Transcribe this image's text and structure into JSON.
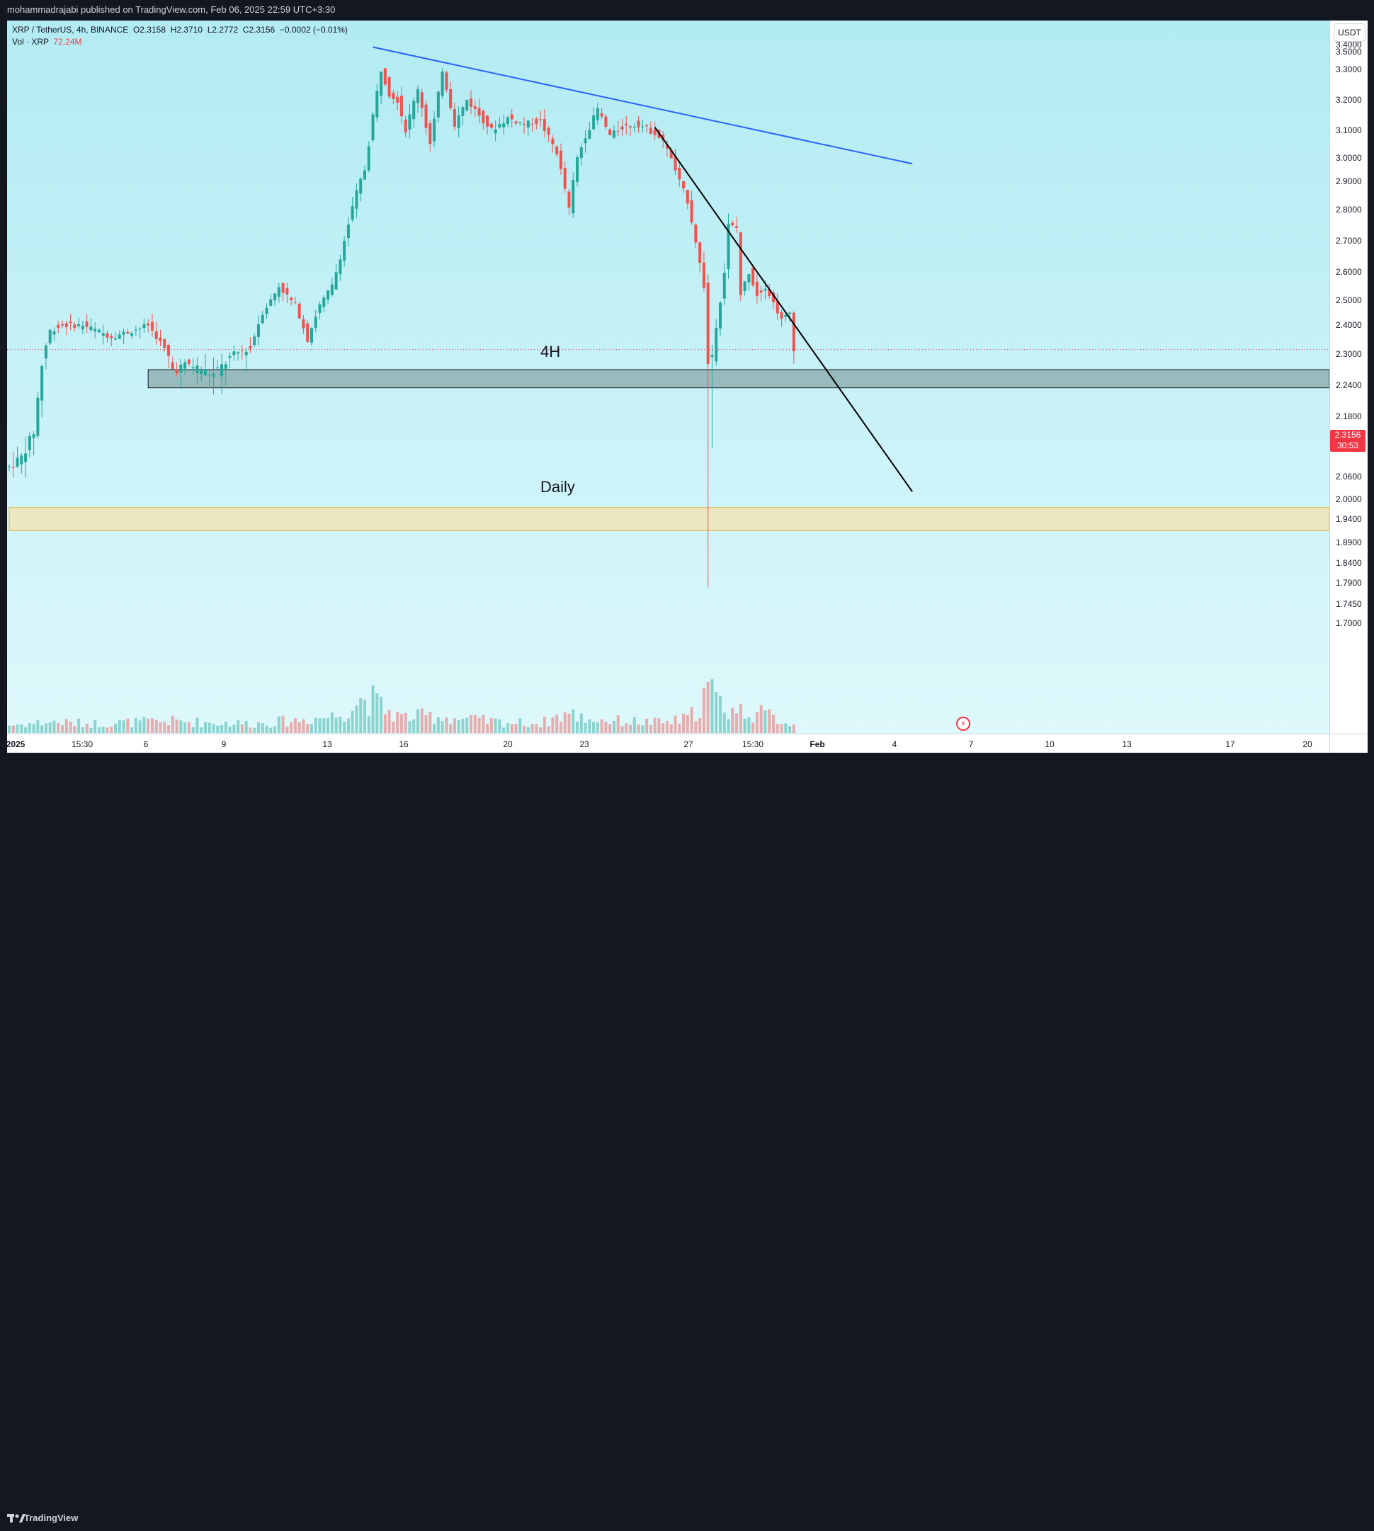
{
  "header": {
    "published_text": "mohammadrajabi published on TradingView.com, Feb 06, 2025 22:59 UTC+3:30"
  },
  "legend": {
    "symbol": "XRP / TetherUS, 4h, BINANCE",
    "open": "O2.3158",
    "high": "H2.3710",
    "low": "L2.2772",
    "close": "C2.3156",
    "change": "−0.0002 (−0.01%)",
    "volume_label": "Vol · XRP",
    "volume_value": "72.24M"
  },
  "price_axis": {
    "unit": "USDT",
    "ticks": [
      "3.5000",
      "3.4000",
      "3.3000",
      "3.2000",
      "3.1000",
      "3.0000",
      "2.9000",
      "2.8000",
      "2.7000",
      "2.6000",
      "2.5000",
      "2.4000",
      "2.3000",
      "2.2400",
      "2.1800",
      "2.1200",
      "2.0600",
      "2.0000",
      "1.9400",
      "1.8900",
      "1.8400",
      "1.7900",
      "1.7450",
      "1.7000"
    ],
    "last_price": "2.3156",
    "countdown": "30:53"
  },
  "time_axis": {
    "ticks": [
      "2025",
      "15:30",
      "6",
      "9",
      "13",
      "16",
      "20",
      "23",
      "27",
      "15:30",
      "Feb",
      "4",
      "7",
      "10",
      "13",
      "17",
      "20"
    ]
  },
  "annotations": {
    "zone_4h_label": "4H",
    "zone_daily_label": "Daily"
  },
  "footer": {
    "brand": "TradingView"
  },
  "colors": {
    "up": "#26a69a",
    "down": "#ef5350",
    "trendline_upper": "#2962ff",
    "trendline_lower": "#000000",
    "zone_4h": "#8fb3b3",
    "zone_daily": "#f2e3b3"
  },
  "chart_data": {
    "type": "candlestick",
    "symbol": "XRP / TetherUS",
    "interval": "4h",
    "exchange": "BINANCE",
    "ylim": [
      1.68,
      3.56
    ],
    "y_ticks": [
      3.5,
      3.4,
      3.3,
      3.2,
      3.1,
      3.0,
      2.9,
      2.8,
      2.7,
      2.6,
      2.5,
      2.4,
      2.3,
      2.24,
      2.18,
      2.12,
      2.06,
      2.0,
      1.94,
      1.89,
      1.84,
      1.79,
      1.745,
      1.7
    ],
    "last_price": 2.3156,
    "price_path": [
      [
        0,
        2.08
      ],
      [
        3,
        2.1
      ],
      [
        6,
        2.15
      ],
      [
        8,
        2.28
      ],
      [
        10,
        2.38
      ],
      [
        13,
        2.4
      ],
      [
        18,
        2.4
      ],
      [
        25,
        2.36
      ],
      [
        30,
        2.38
      ],
      [
        34,
        2.4
      ],
      [
        37,
        2.34
      ],
      [
        40,
        2.27
      ],
      [
        44,
        2.28
      ],
      [
        50,
        2.26
      ],
      [
        55,
        2.3
      ],
      [
        59,
        2.32
      ],
      [
        62,
        2.45
      ],
      [
        66,
        2.55
      ],
      [
        70,
        2.48
      ],
      [
        73,
        2.35
      ],
      [
        76,
        2.48
      ],
      [
        79,
        2.55
      ],
      [
        82,
        2.7
      ],
      [
        85,
        2.86
      ],
      [
        87,
        2.95
      ],
      [
        89,
        3.15
      ],
      [
        91,
        3.3
      ],
      [
        93,
        3.22
      ],
      [
        95,
        3.2
      ],
      [
        97,
        3.1
      ],
      [
        100,
        3.24
      ],
      [
        103,
        3.05
      ],
      [
        106,
        3.3
      ],
      [
        109,
        3.12
      ],
      [
        112,
        3.2
      ],
      [
        115,
        3.15
      ],
      [
        118,
        3.1
      ],
      [
        122,
        3.14
      ],
      [
        126,
        3.12
      ],
      [
        130,
        3.13
      ],
      [
        134,
        3.02
      ],
      [
        137,
        2.8
      ],
      [
        139,
        3.0
      ],
      [
        141,
        3.08
      ],
      [
        144,
        3.17
      ],
      [
        147,
        3.08
      ],
      [
        150,
        3.11
      ],
      [
        154,
        3.12
      ],
      [
        158,
        3.09
      ],
      [
        161,
        3.04
      ],
      [
        164,
        2.9
      ],
      [
        166,
        2.83
      ],
      [
        168,
        2.7
      ],
      [
        170,
        2.55
      ],
      [
        171,
        2.28
      ],
      [
        172,
        2.3
      ],
      [
        173,
        2.4
      ],
      [
        175,
        2.6
      ],
      [
        176,
        2.75
      ],
      [
        178,
        2.74
      ],
      [
        179,
        2.52
      ],
      [
        181,
        2.6
      ],
      [
        183,
        2.52
      ],
      [
        185,
        2.55
      ],
      [
        187,
        2.49
      ],
      [
        189,
        2.42
      ],
      [
        191,
        2.45
      ],
      [
        192,
        2.32
      ]
    ],
    "volume_profile": [
      [
        0,
        0.1
      ],
      [
        10,
        0.14
      ],
      [
        20,
        0.12
      ],
      [
        40,
        0.15
      ],
      [
        50,
        0.13
      ],
      [
        60,
        0.12
      ],
      [
        70,
        0.16
      ],
      [
        80,
        0.22
      ],
      [
        84,
        0.35
      ],
      [
        87,
        0.45
      ],
      [
        89,
        0.42
      ],
      [
        92,
        0.3
      ],
      [
        96,
        0.2
      ],
      [
        104,
        0.22
      ],
      [
        110,
        0.18
      ],
      [
        120,
        0.14
      ],
      [
        130,
        0.12
      ],
      [
        136,
        0.25
      ],
      [
        142,
        0.18
      ],
      [
        150,
        0.15
      ],
      [
        160,
        0.13
      ],
      [
        166,
        0.18
      ],
      [
        169,
        0.35
      ],
      [
        171,
        0.6
      ],
      [
        173,
        0.42
      ],
      [
        176,
        0.3
      ],
      [
        180,
        0.28
      ],
      [
        186,
        0.22
      ],
      [
        192,
        0.1
      ]
    ],
    "time_ticks": [
      "2025",
      "15:30",
      "6",
      "9",
      "13",
      "16",
      "20",
      "23",
      "27",
      "15:30",
      "Feb",
      "4",
      "7",
      "10",
      "13",
      "17",
      "20"
    ],
    "trendlines": [
      {
        "from_bar": 89,
        "from_price": 3.39,
        "to_bar": 221,
        "to_price": 2.975
      },
      {
        "from_bar": 158,
        "from_price": 3.11,
        "to_bar": 221,
        "to_price": 2.02
      }
    ],
    "zones": [
      {
        "label": "4H",
        "price_high": 2.27,
        "price_low": 2.235,
        "from_bar": 34
      },
      {
        "label": "Daily",
        "price_high": 1.975,
        "price_low": 1.915,
        "from_bar": 0
      }
    ],
    "grid": false
  }
}
